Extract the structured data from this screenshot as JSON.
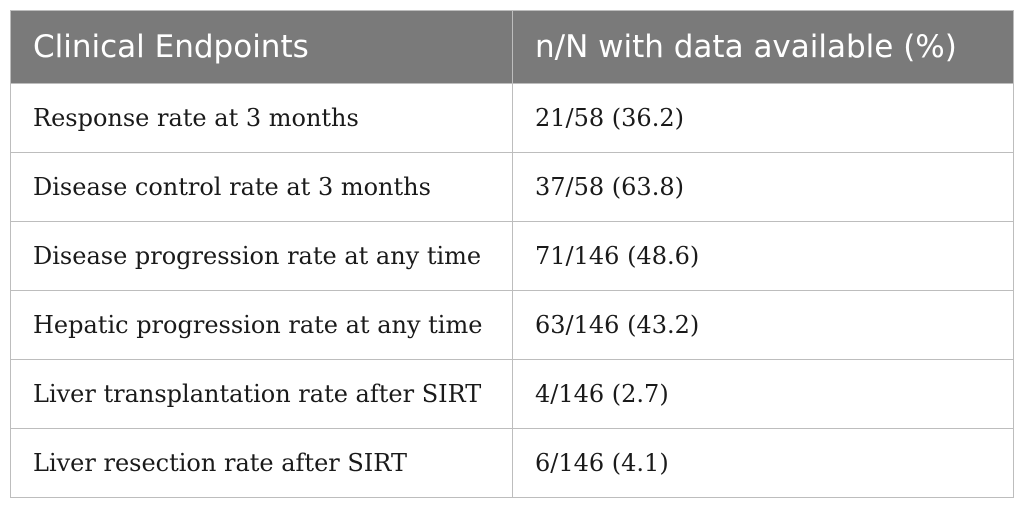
{
  "table": {
    "headers": [
      "Clinical Endpoints",
      "n/N with data available (%)"
    ],
    "rows": [
      [
        "Response rate at 3 months",
        "21/58 (36.2)"
      ],
      [
        "Disease control rate at 3 months",
        "37/58 (63.8)"
      ],
      [
        "Disease progression rate at any time",
        "71/146 (48.6)"
      ],
      [
        "Hepatic progression rate at any time",
        "63/146 (43.2)"
      ],
      [
        "Liver transplantation rate after SIRT",
        "4/146 (2.7)"
      ],
      [
        "Liver resection rate after SIRT",
        "6/146 (4.1)"
      ]
    ]
  }
}
